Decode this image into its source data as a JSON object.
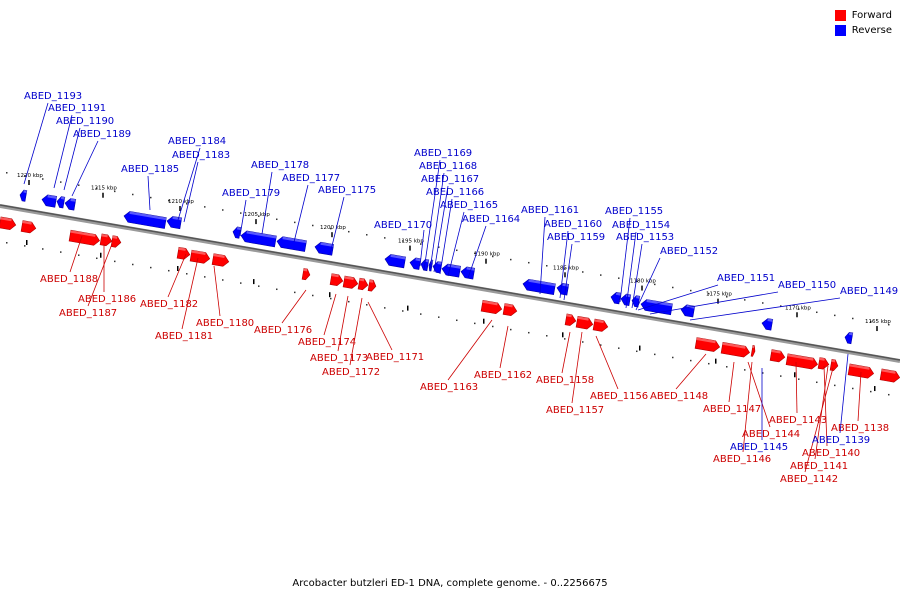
{
  "legend": [
    {
      "label": "Forward",
      "color": "#ff0000"
    },
    {
      "label": "Reverse",
      "color": "#0000ff"
    }
  ],
  "caption": "Arcobacter butzleri ED-1 DNA, complete genome. - 0..2256675",
  "track": {
    "ticks": [
      "1220 kbp",
      "1215 kbp",
      "1210 kbp",
      "1205 kbp",
      "1200 kbp",
      "1195 kbp",
      "1190 kbp",
      "1185 kbp",
      "1180 kbp",
      "1175 kbp",
      "1170 kbp",
      "1165 kbp"
    ]
  },
  "forward_genes": [
    "ABED_1188",
    "ABED_1186",
    "ABED_1187",
    "ABED_1182",
    "ABED_1181",
    "ABED_1180",
    "ABED_1176",
    "ABED_1174",
    "ABED_1173",
    "ABED_1171",
    "ABED_1172",
    "ABED_1163",
    "ABED_1162",
    "ABED_1158",
    "ABED_1157",
    "ABED_1156",
    "ABED_1148",
    "ABED_1147",
    "ABED_1144",
    "ABED_1143",
    "ABED_1146",
    "ABED_1140",
    "ABED_1141",
    "ABED_1142",
    "ABED_1138"
  ],
  "reverse_genes": [
    "ABED_1193",
    "ABED_1191",
    "ABED_1190",
    "ABED_1189",
    "ABED_1184",
    "ABED_1183",
    "ABED_1185",
    "ABED_1178",
    "ABED_1177",
    "ABED_1179",
    "ABED_1175",
    "ABED_1169",
    "ABED_1168",
    "ABED_1167",
    "ABED_1166",
    "ABED_1165",
    "ABED_1164",
    "ABED_1170",
    "ABED_1161",
    "ABED_1160",
    "ABED_1159",
    "ABED_1155",
    "ABED_1154",
    "ABED_1153",
    "ABED_1152",
    "ABED_1151",
    "ABED_1150",
    "ABED_1149",
    "ABED_1145",
    "ABED_1139"
  ]
}
